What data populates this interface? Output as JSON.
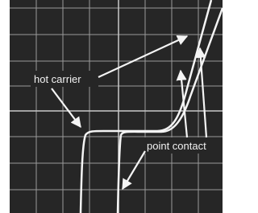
{
  "labels": {
    "hot_carrier": "hot carrier",
    "point_contact": "point contact"
  }
}
